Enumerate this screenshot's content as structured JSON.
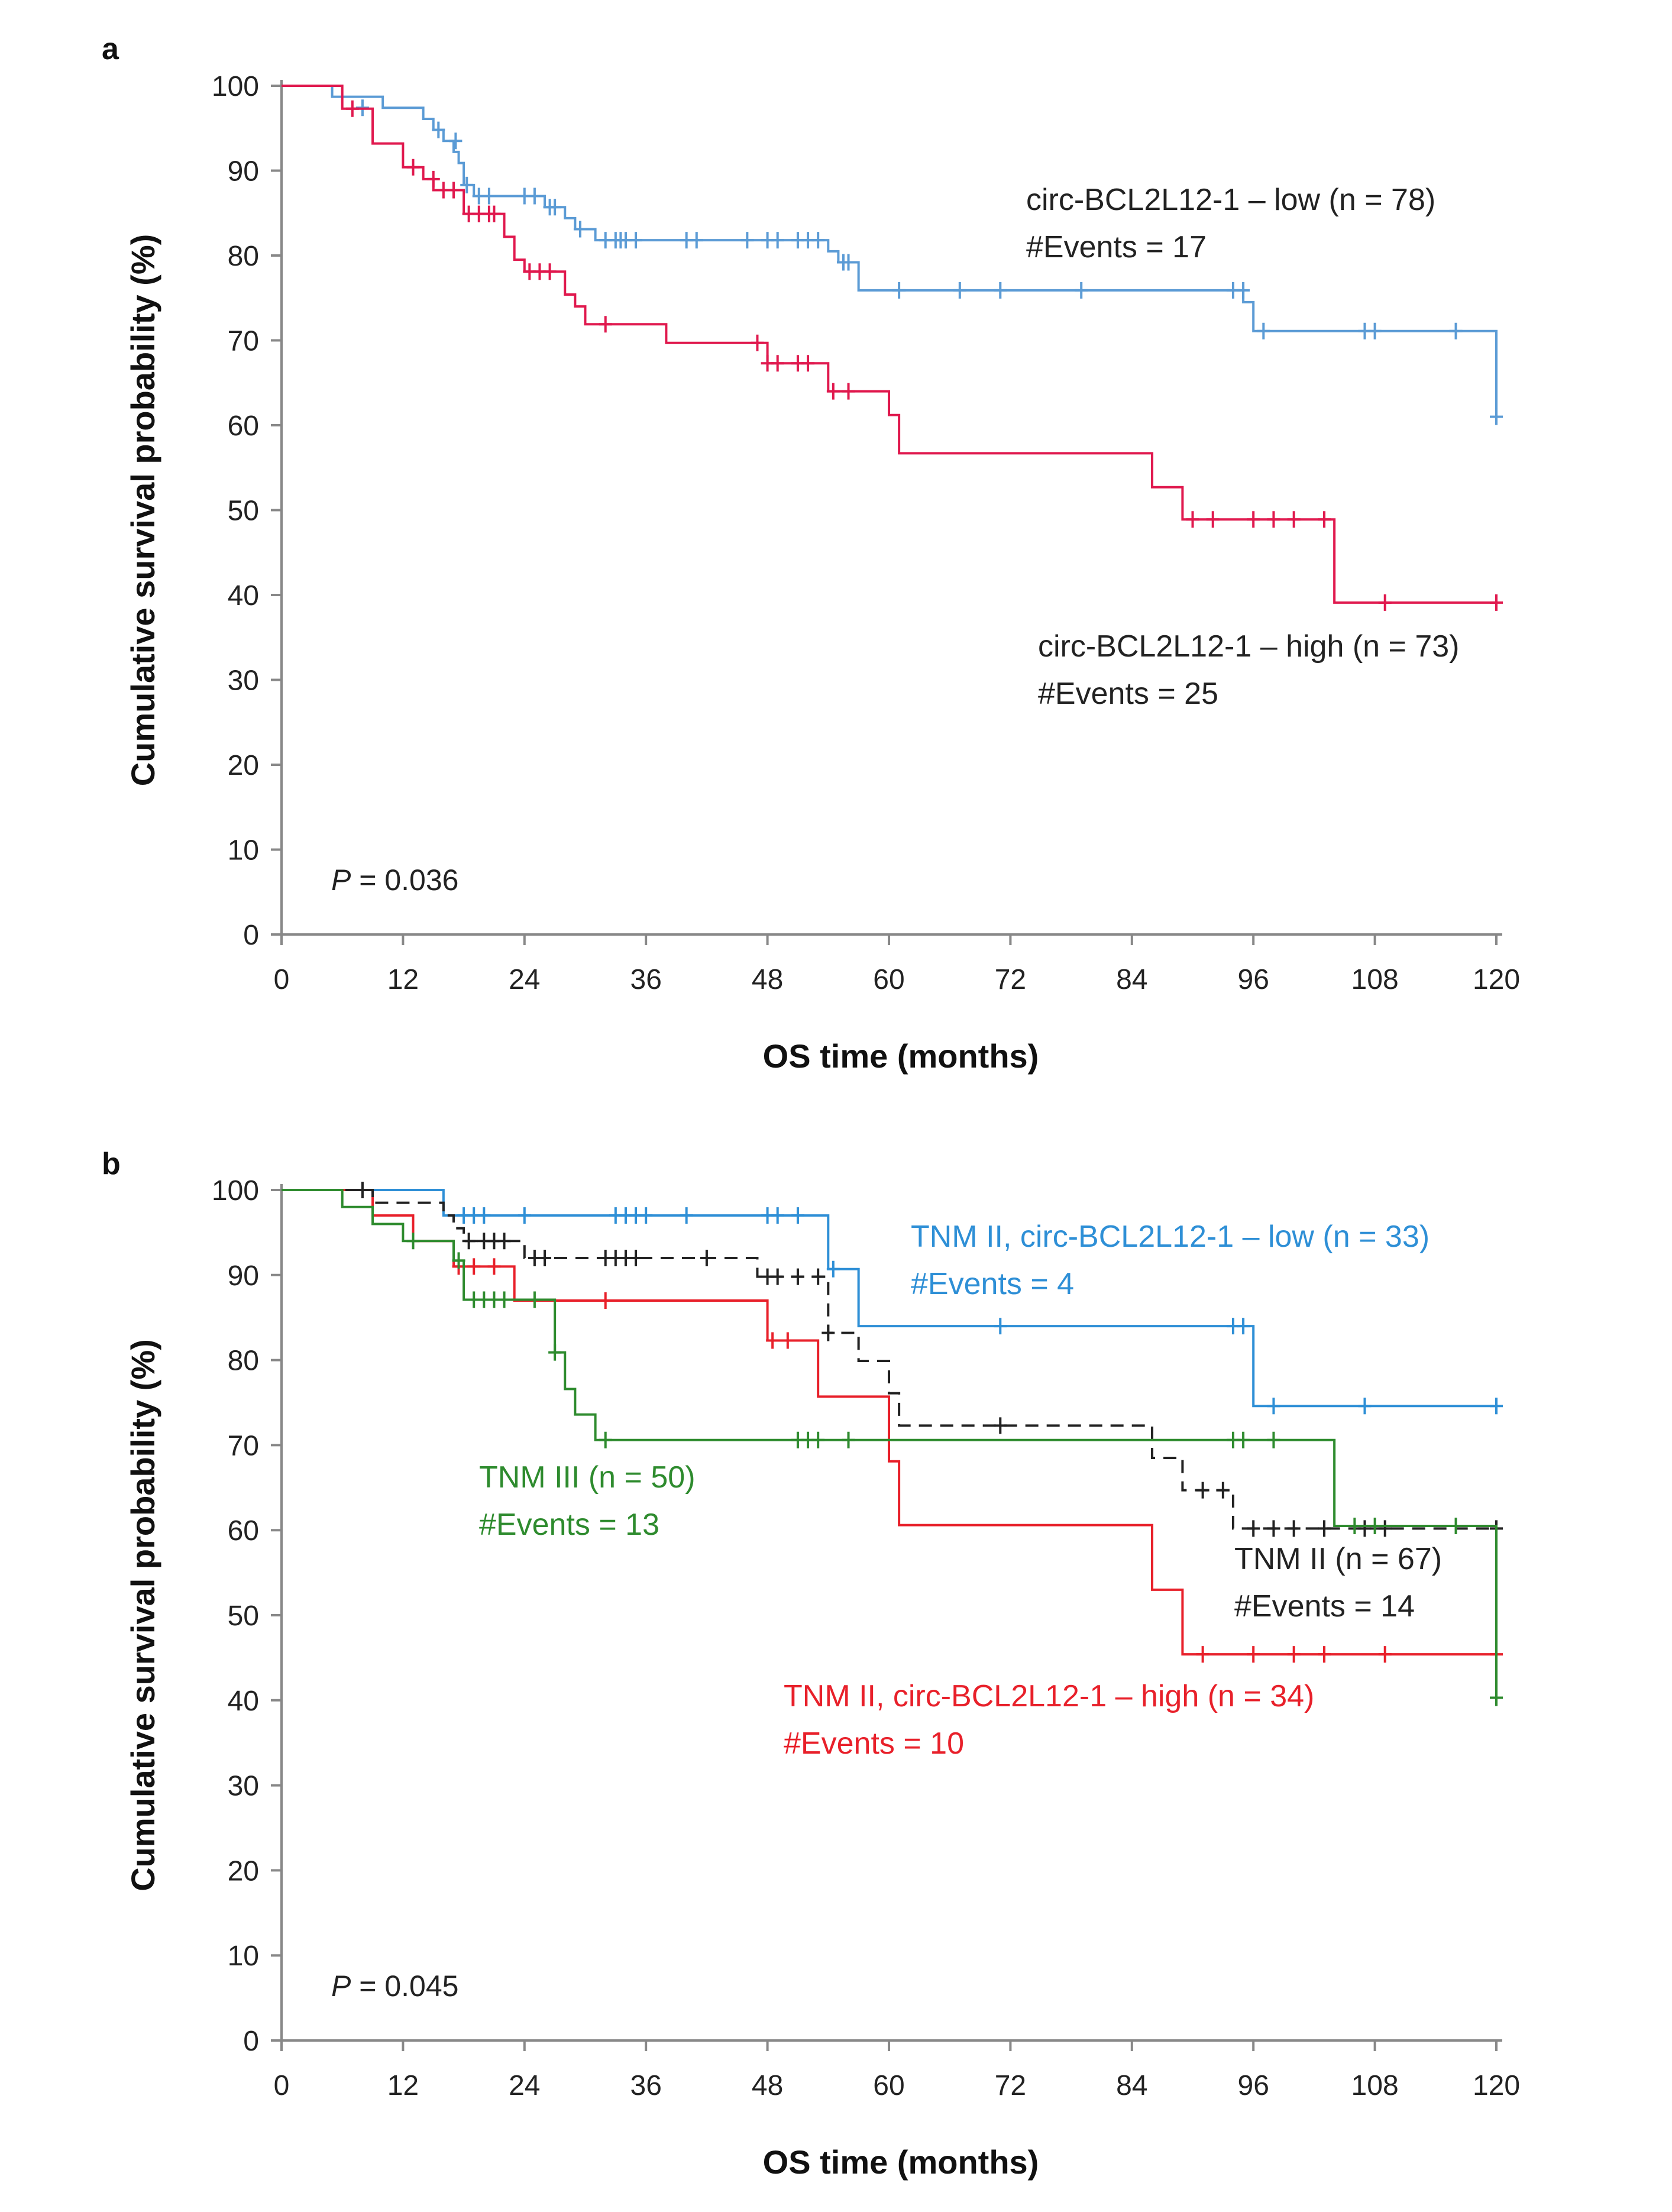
{
  "chart_data": [
    {
      "type": "line",
      "subtype": "kaplan-meier",
      "panel": "a",
      "xlabel": "OS time (months)",
      "ylabel": "Cumulative survival probability (%)",
      "xlim": [
        0,
        120
      ],
      "ylim": [
        0,
        100
      ],
      "xticks": [
        "0",
        "12",
        "24",
        "36",
        "48",
        "60",
        "72",
        "84",
        "96",
        "108",
        "120"
      ],
      "yticks": [
        "0",
        "10",
        "20",
        "30",
        "40",
        "50",
        "60",
        "70",
        "80",
        "90",
        "100"
      ],
      "p_value_label": "P",
      "p_value_text": " = 0.036",
      "series": [
        {
          "name": "circ-BCL2L12-1 – low (n = 78)",
          "events_label": "#Events = 17",
          "color": "#5b9bd5",
          "dashed": false,
          "steps": [
            [
              0,
              100
            ],
            [
              5,
              98.7
            ],
            [
              10,
              97.4
            ],
            [
              14,
              96.1
            ],
            [
              15,
              94.8
            ],
            [
              16,
              93.5
            ],
            [
              17,
              92.2
            ],
            [
              17.5,
              90.9
            ],
            [
              18,
              88.3
            ],
            [
              19,
              87.0
            ],
            [
              26,
              85.7
            ],
            [
              28,
              84.4
            ],
            [
              29,
              83.1
            ],
            [
              31,
              81.8
            ],
            [
              54,
              80.5
            ],
            [
              55,
              79.2
            ],
            [
              57,
              75.9
            ],
            [
              95,
              74.5
            ],
            [
              96,
              71.1
            ],
            [
              120,
              67
            ],
            [
              120,
              61
            ]
          ],
          "censored": [
            [
              8,
              97.4
            ],
            [
              15.5,
              94.8
            ],
            [
              17.2,
              93.5
            ],
            [
              18.3,
              88.3
            ],
            [
              19.5,
              87.0
            ],
            [
              20.5,
              87.0
            ],
            [
              24,
              87.0
            ],
            [
              25,
              87.0
            ],
            [
              26.5,
              85.7
            ],
            [
              27,
              85.7
            ],
            [
              29.5,
              83.1
            ],
            [
              32,
              81.8
            ],
            [
              33,
              81.8
            ],
            [
              33.5,
              81.8
            ],
            [
              34,
              81.8
            ],
            [
              35,
              81.8
            ],
            [
              40,
              81.8
            ],
            [
              41,
              81.8
            ],
            [
              46,
              81.8
            ],
            [
              48,
              81.8
            ],
            [
              49,
              81.8
            ],
            [
              51,
              81.8
            ],
            [
              52,
              81.8
            ],
            [
              53,
              81.8
            ],
            [
              55.5,
              79.2
            ],
            [
              56,
              79.2
            ],
            [
              61,
              75.9
            ],
            [
              67,
              75.9
            ],
            [
              71,
              75.9
            ],
            [
              79,
              75.9
            ],
            [
              94,
              75.9
            ],
            [
              95,
              75.9
            ],
            [
              97,
              71.1
            ],
            [
              107,
              71.1
            ],
            [
              108,
              71.1
            ],
            [
              116,
              71.1
            ],
            [
              120,
              61
            ]
          ]
        },
        {
          "name": "circ-BCL2L12-1 – high (n = 73)",
          "events_label": "#Events = 25",
          "color": "#e0194e",
          "dashed": false,
          "steps": [
            [
              0,
              100
            ],
            [
              6,
              97.3
            ],
            [
              9,
              93.2
            ],
            [
              12,
              90.4
            ],
            [
              14,
              89.0
            ],
            [
              15,
              87.7
            ],
            [
              18,
              84.9
            ],
            [
              22,
              82.2
            ],
            [
              23,
              79.5
            ],
            [
              24,
              78.1
            ],
            [
              28,
              75.4
            ],
            [
              29,
              74.0
            ],
            [
              30,
              71.9
            ],
            [
              38,
              69.7
            ],
            [
              48,
              67.3
            ],
            [
              54,
              64.0
            ],
            [
              60,
              61.2
            ],
            [
              61,
              56.7
            ],
            [
              86,
              52.7
            ],
            [
              89,
              48.9
            ],
            [
              104,
              39.1
            ],
            [
              120,
              39.1
            ]
          ],
          "censored": [
            [
              7,
              97.3
            ],
            [
              13,
              90.4
            ],
            [
              15,
              89.0
            ],
            [
              16,
              87.7
            ],
            [
              17,
              87.7
            ],
            [
              18.5,
              84.9
            ],
            [
              19.5,
              84.9
            ],
            [
              20.5,
              84.9
            ],
            [
              21,
              84.9
            ],
            [
              24.5,
              78.1
            ],
            [
              25.5,
              78.1
            ],
            [
              26.5,
              78.1
            ],
            [
              32,
              71.9
            ],
            [
              47,
              69.7
            ],
            [
              48,
              67.3
            ],
            [
              49,
              67.3
            ],
            [
              51,
              67.3
            ],
            [
              52,
              67.3
            ],
            [
              54.5,
              64.0
            ],
            [
              56,
              64.0
            ],
            [
              90,
              48.9
            ],
            [
              92,
              48.9
            ],
            [
              96,
              48.9
            ],
            [
              98,
              48.9
            ],
            [
              100,
              48.9
            ],
            [
              103,
              48.9
            ],
            [
              109,
              39.1
            ],
            [
              120,
              39.1
            ]
          ]
        }
      ]
    },
    {
      "type": "line",
      "subtype": "kaplan-meier",
      "panel": "b",
      "xlabel": "OS time (months)",
      "ylabel": "Cumulative survival probability (%)",
      "xlim": [
        0,
        120
      ],
      "ylim": [
        0,
        100
      ],
      "xticks": [
        "0",
        "12",
        "24",
        "36",
        "48",
        "60",
        "72",
        "84",
        "96",
        "108",
        "120"
      ],
      "yticks": [
        "0",
        "10",
        "20",
        "30",
        "40",
        "50",
        "60",
        "70",
        "80",
        "90",
        "100"
      ],
      "p_value_label": "P",
      "p_value_text": " = 0.045",
      "series": [
        {
          "name": "TNM II, circ-BCL2L12-1 – low (n = 33)",
          "events_label": "#Events = 4",
          "color": "#2e8fd6",
          "dashed": false,
          "steps": [
            [
              0,
              100
            ],
            [
              16,
              97
            ],
            [
              54,
              90.7
            ],
            [
              57,
              84
            ],
            [
              96,
              74.6
            ],
            [
              120,
              74.6
            ]
          ],
          "censored": [
            [
              18,
              97
            ],
            [
              19,
              97
            ],
            [
              20,
              97
            ],
            [
              24,
              97
            ],
            [
              33,
              97
            ],
            [
              34,
              97
            ],
            [
              35,
              97
            ],
            [
              36,
              97
            ],
            [
              40,
              97
            ],
            [
              48,
              97
            ],
            [
              49,
              97
            ],
            [
              51,
              97
            ],
            [
              54.5,
              90.7
            ],
            [
              71,
              84
            ],
            [
              94,
              84
            ],
            [
              95,
              84
            ],
            [
              98,
              74.6
            ],
            [
              107,
              74.6
            ],
            [
              120,
              74.6
            ]
          ]
        },
        {
          "name": "TNM II, circ-BCL2L12-1 – high (n = 34)",
          "events_label": "#Events = 10",
          "color": "#e8202a",
          "dashed": false,
          "steps": [
            [
              0,
              100
            ],
            [
              9,
              97
            ],
            [
              13,
              94
            ],
            [
              17,
              91
            ],
            [
              23,
              87
            ],
            [
              48,
              82.3
            ],
            [
              53,
              75.7
            ],
            [
              60,
              68.1
            ],
            [
              61,
              60.6
            ],
            [
              86,
              53
            ],
            [
              89,
              45.4
            ],
            [
              120,
              45.4
            ]
          ],
          "censored": [
            [
              17.5,
              91
            ],
            [
              19,
              91
            ],
            [
              21,
              91
            ],
            [
              32,
              87
            ],
            [
              48.5,
              82.3
            ],
            [
              50,
              82.3
            ],
            [
              91,
              45.4
            ],
            [
              96,
              45.4
            ],
            [
              100,
              45.4
            ],
            [
              103,
              45.4
            ],
            [
              109,
              45.4
            ],
            [
              120,
              45.4
            ]
          ]
        },
        {
          "name": "TNM II (n = 67)",
          "events_label": "#Events = 14",
          "color": "#222222",
          "dashed": true,
          "steps": [
            [
              0,
              100
            ],
            [
              8,
              100
            ],
            [
              9,
              98.5
            ],
            [
              16,
              97
            ],
            [
              17,
              95.5
            ],
            [
              18,
              94
            ],
            [
              24,
              92
            ],
            [
              47,
              89.8
            ],
            [
              54,
              83.2
            ],
            [
              57,
              79.9
            ],
            [
              60,
              76.1
            ],
            [
              61,
              72.3
            ],
            [
              86,
              68.5
            ],
            [
              89,
              64.7
            ],
            [
              94,
              60.2
            ],
            [
              120,
              60.2
            ]
          ],
          "censored": [
            [
              8,
              100
            ],
            [
              18.5,
              94
            ],
            [
              20,
              94
            ],
            [
              21,
              94
            ],
            [
              22,
              94
            ],
            [
              25,
              92
            ],
            [
              26,
              92
            ],
            [
              32,
              92
            ],
            [
              33,
              92
            ],
            [
              34,
              92
            ],
            [
              35,
              92
            ],
            [
              42,
              92
            ],
            [
              48,
              89.8
            ],
            [
              49,
              89.8
            ],
            [
              51,
              89.8
            ],
            [
              53,
              89.8
            ],
            [
              54,
              83.2
            ],
            [
              71,
              72.3
            ],
            [
              91,
              64.7
            ],
            [
              93,
              64.7
            ],
            [
              96,
              60.2
            ],
            [
              98,
              60.2
            ],
            [
              100,
              60.2
            ],
            [
              103,
              60.2
            ],
            [
              107,
              60.2
            ],
            [
              109,
              60.2
            ],
            [
              120,
              60.2
            ]
          ]
        },
        {
          "name": "TNM III (n = 50)",
          "events_label": "#Events = 13",
          "color": "#2e8b2e",
          "dashed": false,
          "steps": [
            [
              0,
              100
            ],
            [
              6,
              98
            ],
            [
              9,
              96
            ],
            [
              12,
              94
            ],
            [
              17,
              91.7
            ],
            [
              18,
              87.1
            ],
            [
              27,
              80.9
            ],
            [
              28,
              76.6
            ],
            [
              29,
              73.6
            ],
            [
              31,
              70.6
            ],
            [
              104,
              60.5
            ],
            [
              120,
              40.3
            ]
          ],
          "censored": [
            [
              13,
              94
            ],
            [
              17.5,
              91.7
            ],
            [
              19,
              87.1
            ],
            [
              20,
              87.1
            ],
            [
              21,
              87.1
            ],
            [
              22,
              87.1
            ],
            [
              25,
              87.1
            ],
            [
              27,
              80.9
            ],
            [
              32,
              70.6
            ],
            [
              51,
              70.6
            ],
            [
              52,
              70.6
            ],
            [
              53,
              70.6
            ],
            [
              56,
              70.6
            ],
            [
              94,
              70.6
            ],
            [
              95,
              70.6
            ],
            [
              98,
              70.6
            ],
            [
              106,
              60.5
            ],
            [
              108,
              60.5
            ],
            [
              116,
              60.5
            ],
            [
              120,
              40.3
            ]
          ]
        }
      ]
    }
  ]
}
